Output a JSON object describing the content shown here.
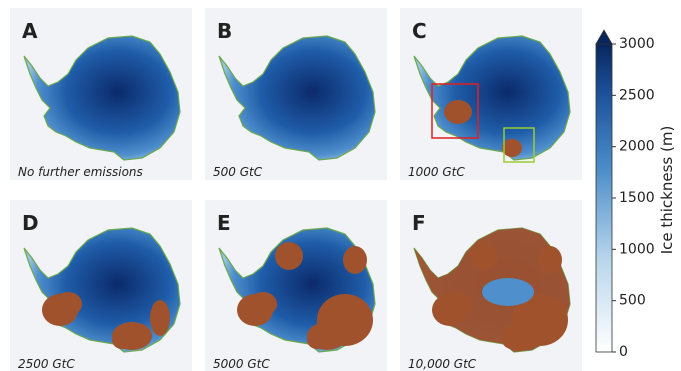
{
  "panels": [
    {
      "letter": "A",
      "caption": "No further emissions"
    },
    {
      "letter": "B",
      "caption": "500 GtC"
    },
    {
      "letter": "C",
      "caption": "1000 GtC"
    },
    {
      "letter": "D",
      "caption": "2500 GtC"
    },
    {
      "letter": "E",
      "caption": "5000 GtC"
    },
    {
      "letter": "F",
      "caption": "10,000 GtC"
    }
  ],
  "colorbar": {
    "label": "Ice thickness (m)",
    "lim": [
      0,
      3000
    ],
    "ticks": [
      0,
      500,
      1000,
      1500,
      2000,
      2500,
      3000
    ]
  }
}
